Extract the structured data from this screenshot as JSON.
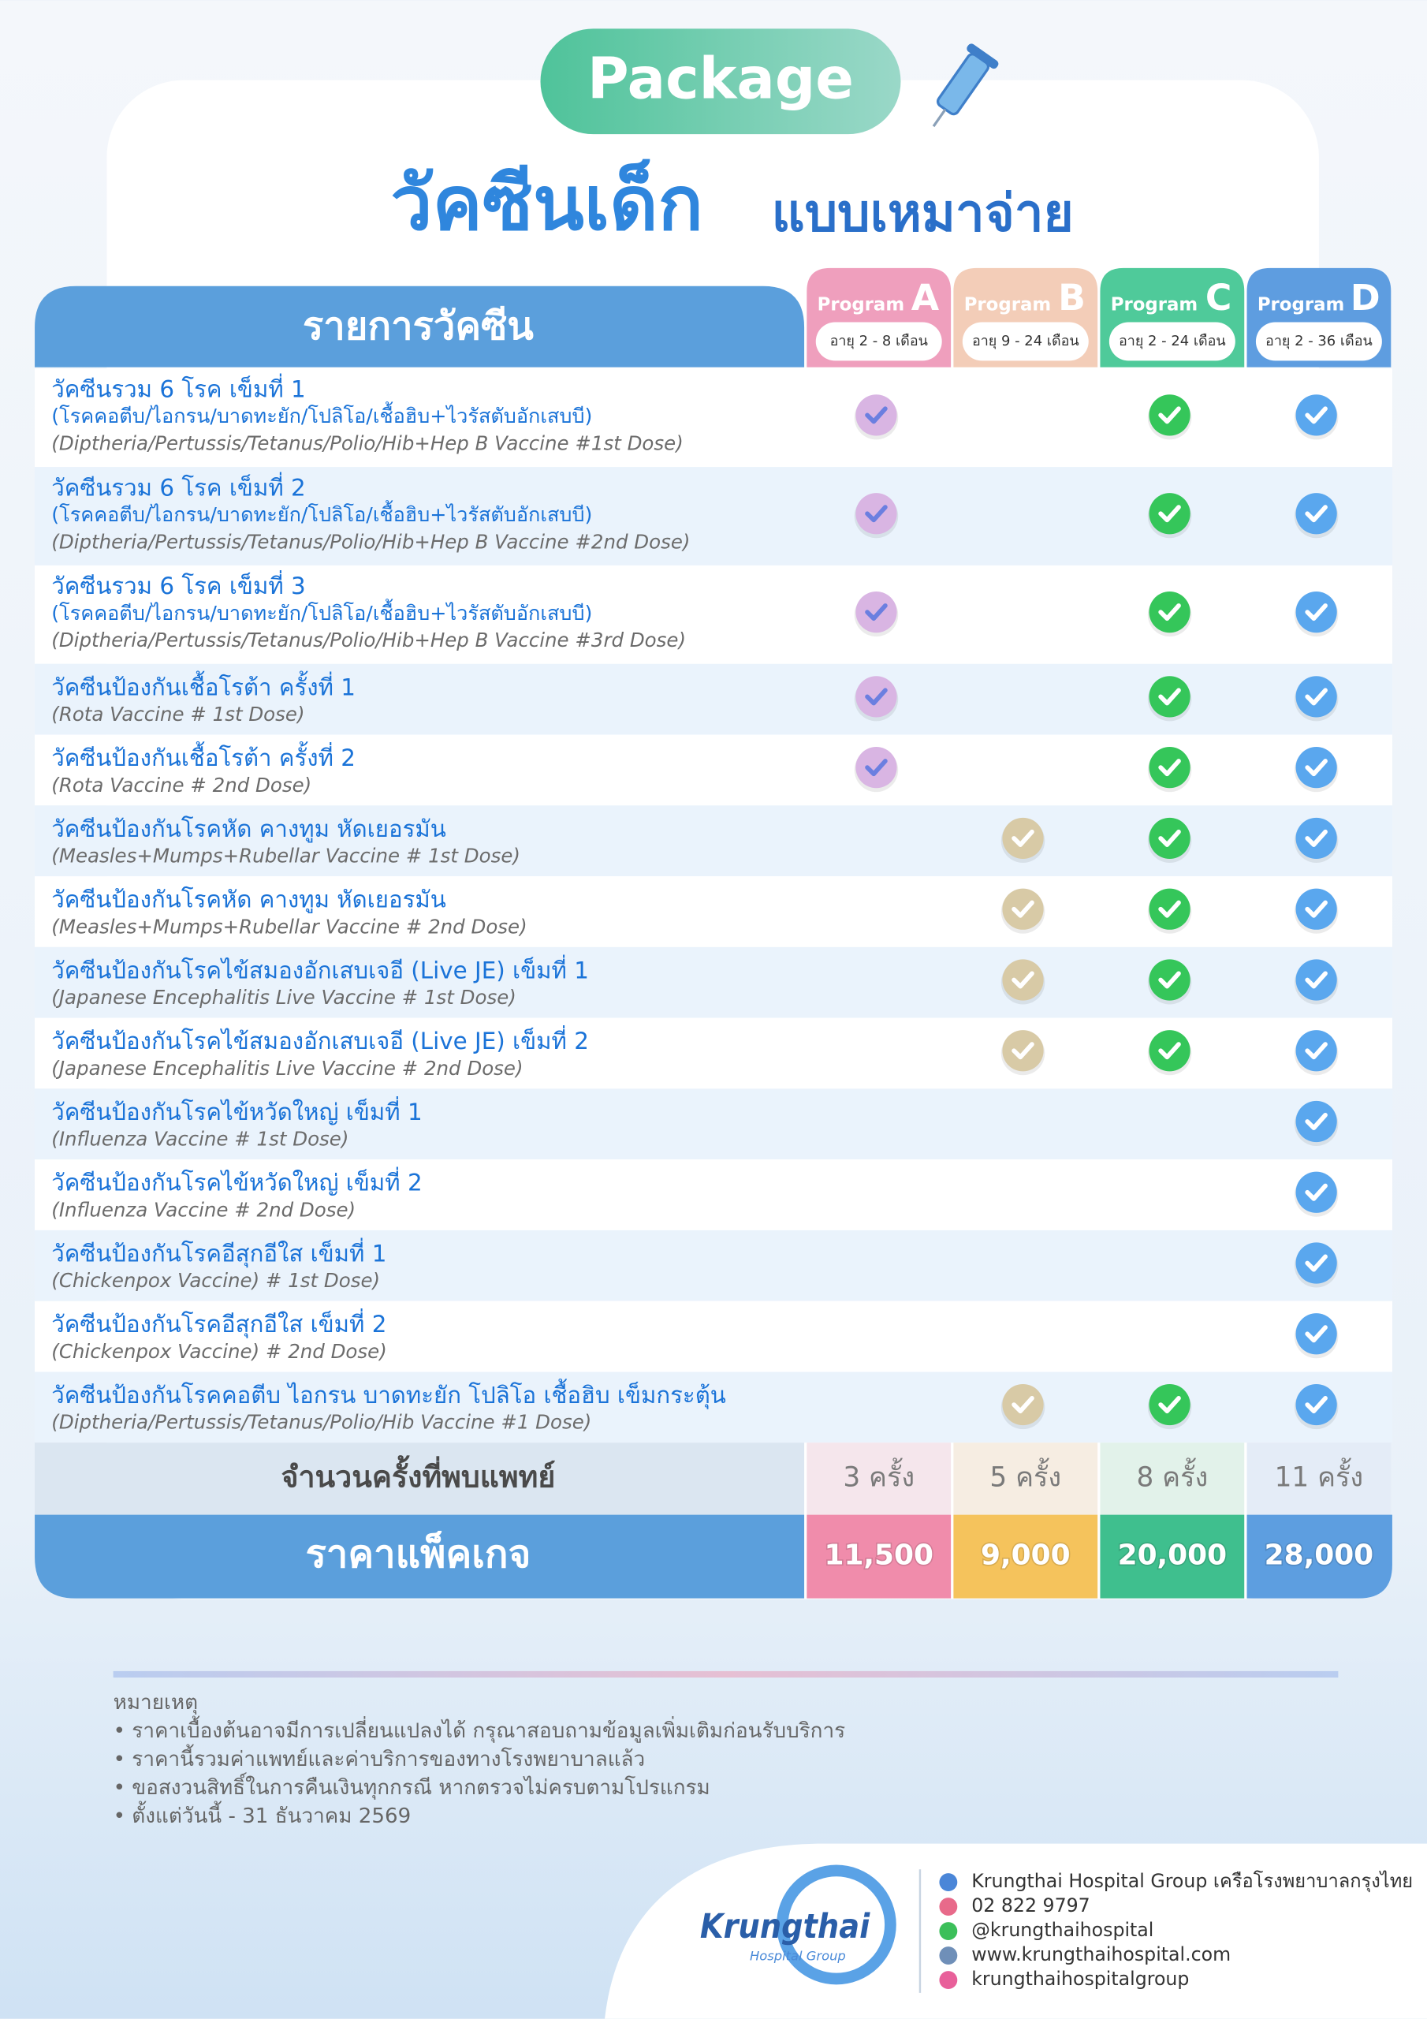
{
  "header": {
    "badge": "Package",
    "title_main": "วัคซีนเด็ก",
    "title_sub": "แบบเหมาจ่าย"
  },
  "table": {
    "column_header": "รายการวัคซีน",
    "programs": [
      {
        "label": "Program",
        "letter": "A",
        "age": "อายุ 2 - 8 เดือน",
        "visits": "3 ครั้ง",
        "price": "11,500"
      },
      {
        "label": "Program",
        "letter": "B",
        "age": "อายุ 9 - 24 เดือน",
        "visits": "5 ครั้ง",
        "price": "9,000"
      },
      {
        "label": "Program",
        "letter": "C",
        "age": "อายุ 2 - 24 เดือน",
        "visits": "8 ครั้ง",
        "price": "20,000"
      },
      {
        "label": "Program",
        "letter": "D",
        "age": "อายุ 2 - 36 เดือน",
        "visits": "11 ครั้ง",
        "price": "28,000"
      }
    ],
    "rows": [
      {
        "name": "วัคซีนรวม 6 โรค เข็มที่ 1",
        "detail": "(โรคคอตีบ/ไอกรน/บาดทะยัก/โปลิโอ/เชื้อฮิบ+ไวรัสตับอักเสบบี)",
        "english": "(Diptheria/Pertussis/Tetanus/Polio/Hib+Hep B Vaccine #1st Dose)",
        "checks": [
          true,
          false,
          true,
          true
        ]
      },
      {
        "name": "วัคซีนรวม 6 โรค เข็มที่ 2",
        "detail": "(โรคคอตีบ/ไอกรน/บาดทะยัก/โปลิโอ/เชื้อฮิบ+ไวรัสตับอักเสบบี)",
        "english": "(Diptheria/Pertussis/Tetanus/Polio/Hib+Hep B Vaccine #2nd Dose)",
        "checks": [
          true,
          false,
          true,
          true
        ]
      },
      {
        "name": "วัคซีนรวม 6 โรค เข็มที่ 3",
        "detail": "(โรคคอตีบ/ไอกรน/บาดทะยัก/โปลิโอ/เชื้อฮิบ+ไวรัสตับอักเสบบี)",
        "english": "(Diptheria/Pertussis/Tetanus/Polio/Hib+Hep B Vaccine #3rd Dose)",
        "checks": [
          true,
          false,
          true,
          true
        ]
      },
      {
        "name": "วัคซีนป้องกันเชื้อโรต้า ครั้งที่ 1",
        "english": "(Rota Vaccine # 1st Dose)",
        "checks": [
          true,
          false,
          true,
          true
        ]
      },
      {
        "name": "วัคซีนป้องกันเชื้อโรต้า ครั้งที่ 2",
        "english": "(Rota Vaccine # 2nd Dose)",
        "checks": [
          true,
          false,
          true,
          true
        ]
      },
      {
        "name": "วัคซีนป้องกันโรคหัด คางทูม หัดเยอรมัน",
        "english": "(Measles+Mumps+Rubellar Vaccine # 1st Dose)",
        "checks": [
          false,
          true,
          true,
          true
        ]
      },
      {
        "name": "วัคซีนป้องกันโรคหัด คางทูม หัดเยอรมัน",
        "english": "(Measles+Mumps+Rubellar Vaccine # 2nd Dose)",
        "checks": [
          false,
          true,
          true,
          true
        ]
      },
      {
        "name": "วัคซีนป้องกันโรคไข้สมองอักเสบเจอี (Live JE) เข็มที่ 1",
        "english": "(Japanese Encephalitis Live Vaccine # 1st Dose)",
        "checks": [
          false,
          true,
          true,
          true
        ]
      },
      {
        "name": "วัคซีนป้องกันโรคไข้สมองอักเสบเจอี (Live JE) เข็มที่ 2",
        "english": "(Japanese Encephalitis Live Vaccine # 2nd Dose)",
        "checks": [
          false,
          true,
          true,
          true
        ]
      },
      {
        "name": "วัคซีนป้องกันโรคไข้หวัดใหญ่ เข็มที่ 1",
        "english": "(Influenza Vaccine # 1st Dose)",
        "checks": [
          false,
          false,
          false,
          true
        ]
      },
      {
        "name": "วัคซีนป้องกันโรคไข้หวัดใหญ่ เข็มที่ 2",
        "english": "(Influenza Vaccine # 2nd Dose)",
        "checks": [
          false,
          false,
          false,
          true
        ]
      },
      {
        "name": "วัคซีนป้องกันโรคอีสุกอีใส เข็มที่ 1",
        "english": "(Chickenpox Vaccine) # 1st Dose)",
        "checks": [
          false,
          false,
          false,
          true
        ]
      },
      {
        "name": "วัคซีนป้องกันโรคอีสุกอีใส เข็มที่ 2",
        "english": "(Chickenpox Vaccine) # 2nd Dose)",
        "checks": [
          false,
          false,
          false,
          true
        ]
      },
      {
        "name": "วัคซีนป้องกันโรคคอตีบ ไอกรน บาดทะยัก โปลิโอ เชื้อฮิบ เข็มกระตุ้น",
        "english": "(Diptheria/Pertussis/Tetanus/Polio/Hib Vaccine #1 Dose)",
        "checks": [
          false,
          true,
          true,
          true
        ]
      }
    ],
    "visits_label": "จำนวนครั้งที่พบแพทย์",
    "price_label": "ราคาแพ็คเกจ"
  },
  "notes": {
    "title": "หมายเหตุ",
    "items": [
      "• ราคาเบื้องต้นอาจมีการเปลี่ยนแปลงได้ กรุณาสอบถามข้อมูลเพิ่มเติมก่อนรับบริการ",
      "• ราคานี้รวมค่าแพทย์และค่าบริการของทางโรงพยาบาลแล้ว",
      "• ขอสงวนสิทธิ์ในการคืนเงินทุกกรณี หากตรวจไม่ครบตามโปรแกรม",
      "• ตั้งแต่วันนี้ - 31 ธันวาคม 2569"
    ]
  },
  "footer": {
    "logo": "Krungthai",
    "logo_sub": "Hospital Group",
    "contacts": [
      "Krungthai Hospital Group เครือโรงพยาบาลกรุงไทย",
      "02 822 9797",
      "@krungthaihospital",
      "www.krungthaihospital.com",
      "krungthaihospitalgroup"
    ]
  }
}
